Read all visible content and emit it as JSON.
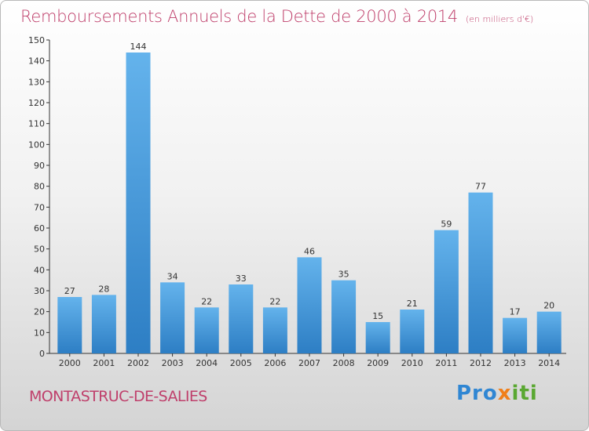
{
  "colors": {
    "title": "#bf3f6b",
    "bar_top": "#64b3ec",
    "bar_bottom": "#2d7ec4",
    "axis": "#333333"
  },
  "header": {
    "title": "Remboursements Annuels de la Dette de 2000 à 2014",
    "unit": "(en milliers d'€)"
  },
  "footer": {
    "town": "MONTASTRUC-DE-SALIES"
  },
  "logo": {
    "p1": "Pro",
    "p2": "x",
    "p3": "iti"
  },
  "chart_data": {
    "type": "bar",
    "title": "Remboursements Annuels de la Dette de 2000 à 2014",
    "subtitle": "(en milliers d'€)",
    "categories": [
      "2000",
      "2001",
      "2002",
      "2003",
      "2004",
      "2005",
      "2006",
      "2007",
      "2008",
      "2009",
      "2010",
      "2011",
      "2012",
      "2013",
      "2014"
    ],
    "values": [
      27,
      28,
      144,
      34,
      22,
      33,
      22,
      46,
      35,
      15,
      21,
      59,
      77,
      17,
      20
    ],
    "ylim": [
      0,
      150
    ],
    "yticks": [
      0,
      10,
      20,
      30,
      40,
      50,
      60,
      70,
      80,
      90,
      100,
      110,
      120,
      130,
      140,
      150
    ],
    "grid": false,
    "data_labels": true
  }
}
